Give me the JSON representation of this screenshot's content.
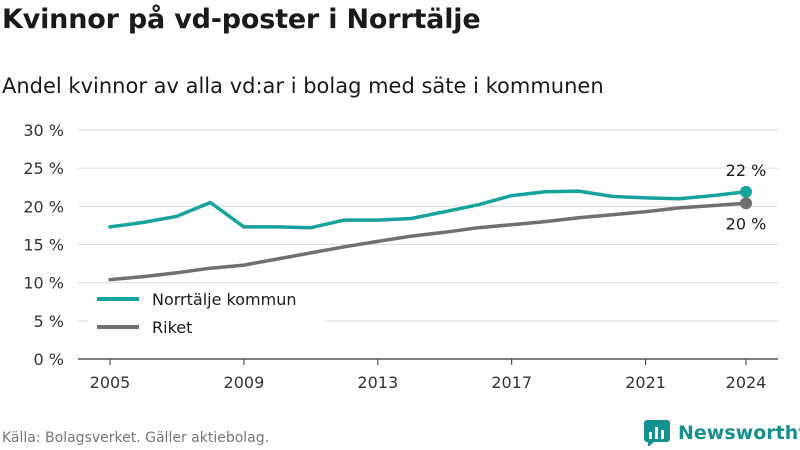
{
  "header": {
    "title": "Kvinnor på vd-poster i Norrtälje",
    "subtitle": "Andel kvinnor av alla vd:ar i bolag med säte i kommunen"
  },
  "footer": {
    "source": "Källa: Bolagsverket. Gäller aktiebolag.",
    "brand": "Newsworthy",
    "brand_icon": "bar-chart-logo-icon"
  },
  "colors": {
    "norrtalje": "#16a39d",
    "riket": "#707070",
    "grid": "#dddddd",
    "brand": "#14908f"
  },
  "chart_data": {
    "type": "line",
    "ylim": [
      0,
      30
    ],
    "yticks": [
      0,
      5,
      10,
      15,
      20,
      25,
      30
    ],
    "ytick_suffix": " %",
    "xlim": [
      2005,
      2024
    ],
    "xticks": [
      2005,
      2009,
      2013,
      2017,
      2021,
      2024
    ],
    "grid": true,
    "legend_position": "bottom-left",
    "x": [
      2005,
      2006,
      2007,
      2008,
      2009,
      2010,
      2011,
      2012,
      2013,
      2014,
      2015,
      2016,
      2017,
      2018,
      2019,
      2020,
      2021,
      2022,
      2023,
      2024
    ],
    "series": [
      {
        "name": "Norrtälje kommun",
        "color": "#16a39d",
        "values": [
          17.3,
          17.9,
          18.7,
          20.5,
          17.3,
          17.3,
          17.2,
          18.2,
          18.2,
          18.4,
          19.3,
          20.2,
          21.4,
          21.9,
          22.0,
          21.3,
          21.1,
          21.0,
          21.4,
          21.9
        ],
        "end_label": "22 %"
      },
      {
        "name": "Riket",
        "color": "#707070",
        "values": [
          10.4,
          10.8,
          11.3,
          11.9,
          12.3,
          13.1,
          13.9,
          14.7,
          15.4,
          16.1,
          16.6,
          17.2,
          17.6,
          18.0,
          18.5,
          18.9,
          19.3,
          19.8,
          20.1,
          20.4
        ],
        "end_label": "20 %"
      }
    ]
  }
}
